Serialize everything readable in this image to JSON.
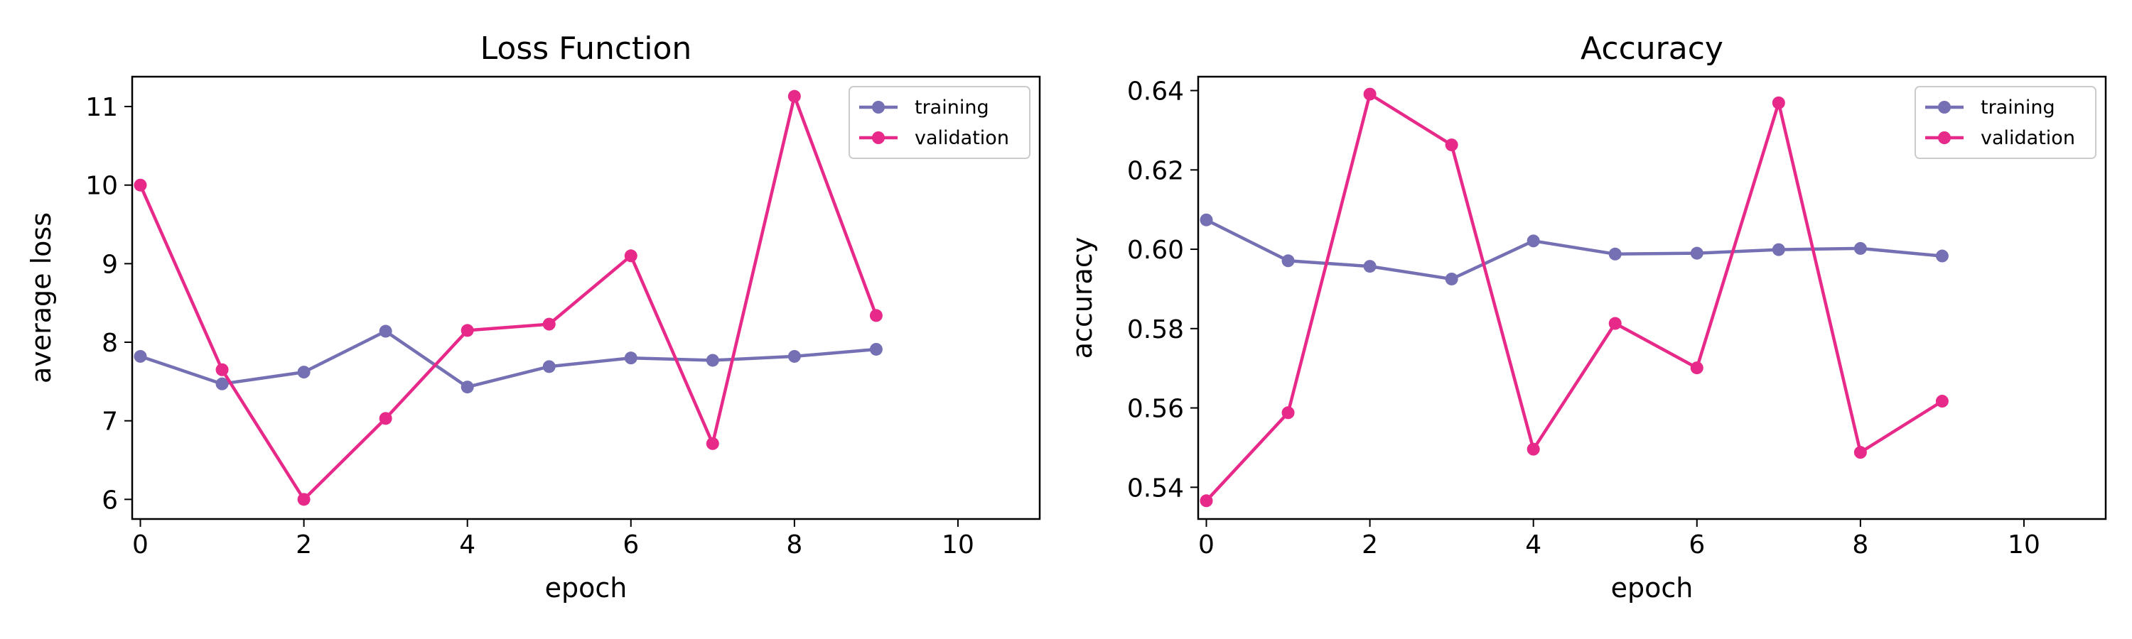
{
  "chart_data": [
    {
      "type": "line",
      "title": "Loss Function",
      "xlabel": "epoch",
      "ylabel": "average loss",
      "xlim": [
        -0.1,
        11.0
      ],
      "ylim": [
        5.75,
        11.38
      ],
      "xticks": [
        0,
        2,
        4,
        6,
        8,
        10
      ],
      "xtick_labels": [
        "0",
        "2",
        "4",
        "6",
        "8",
        "10"
      ],
      "yticks": [
        6,
        7,
        8,
        9,
        10,
        11
      ],
      "ytick_labels": [
        "6",
        "7",
        "8",
        "9",
        "10",
        "11"
      ],
      "grid": false,
      "legend_position": "top-right",
      "x": [
        0,
        1,
        2,
        3,
        4,
        5,
        6,
        7,
        8,
        9
      ],
      "series": [
        {
          "name": "training",
          "color": "#7570b3",
          "values": [
            7.82,
            7.47,
            7.62,
            8.14,
            7.43,
            7.69,
            7.8,
            7.77,
            7.82,
            7.91
          ]
        },
        {
          "name": "validation",
          "color": "#e7298a",
          "values": [
            10.0,
            7.65,
            6.0,
            7.03,
            8.15,
            8.23,
            9.1,
            6.71,
            11.13,
            8.34
          ]
        }
      ]
    },
    {
      "type": "line",
      "title": "Accuracy",
      "xlabel": "epoch",
      "ylabel": "accuracy",
      "xlim": [
        -0.1,
        11.0
      ],
      "ylim": [
        0.532,
        0.6435
      ],
      "xticks": [
        0,
        2,
        4,
        6,
        8,
        10
      ],
      "xtick_labels": [
        "0",
        "2",
        "4",
        "6",
        "8",
        "10"
      ],
      "yticks": [
        0.54,
        0.56,
        0.58,
        0.6,
        0.62,
        0.64
      ],
      "ytick_labels": [
        "0.54",
        "0.56",
        "0.58",
        "0.60",
        "0.62",
        "0.64"
      ],
      "grid": false,
      "legend_position": "top-right",
      "x": [
        0,
        1,
        2,
        3,
        4,
        5,
        6,
        7,
        8,
        9
      ],
      "series": [
        {
          "name": "training",
          "color": "#7570b3",
          "values": [
            0.6074,
            0.5971,
            0.5957,
            0.5925,
            0.6021,
            0.5988,
            0.599,
            0.5999,
            0.6002,
            0.5983
          ]
        },
        {
          "name": "validation",
          "color": "#e7298a",
          "values": [
            0.5366,
            0.5588,
            0.6391,
            0.6263,
            0.5496,
            0.5813,
            0.5701,
            0.6369,
            0.5488,
            0.5617
          ]
        }
      ]
    }
  ]
}
